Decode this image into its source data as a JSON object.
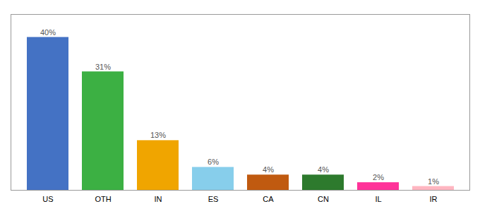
{
  "chart_data": {
    "type": "bar",
    "categories": [
      "US",
      "OTH",
      "IN",
      "ES",
      "CA",
      "CN",
      "IL",
      "IR"
    ],
    "values": [
      40,
      31,
      13,
      6,
      4,
      4,
      2,
      1
    ],
    "value_labels": [
      "40%",
      "31%",
      "13%",
      "6%",
      "4%",
      "4%",
      "2%",
      "1%"
    ],
    "colors": [
      "#4472c4",
      "#3cb043",
      "#f0a500",
      "#87ceeb",
      "#c05a10",
      "#2d7a2d",
      "#ff3399",
      "#ffb6c1"
    ],
    "ylim": [
      0,
      46
    ],
    "data_labels": true,
    "tick_labels": "x",
    "grid": false
  }
}
